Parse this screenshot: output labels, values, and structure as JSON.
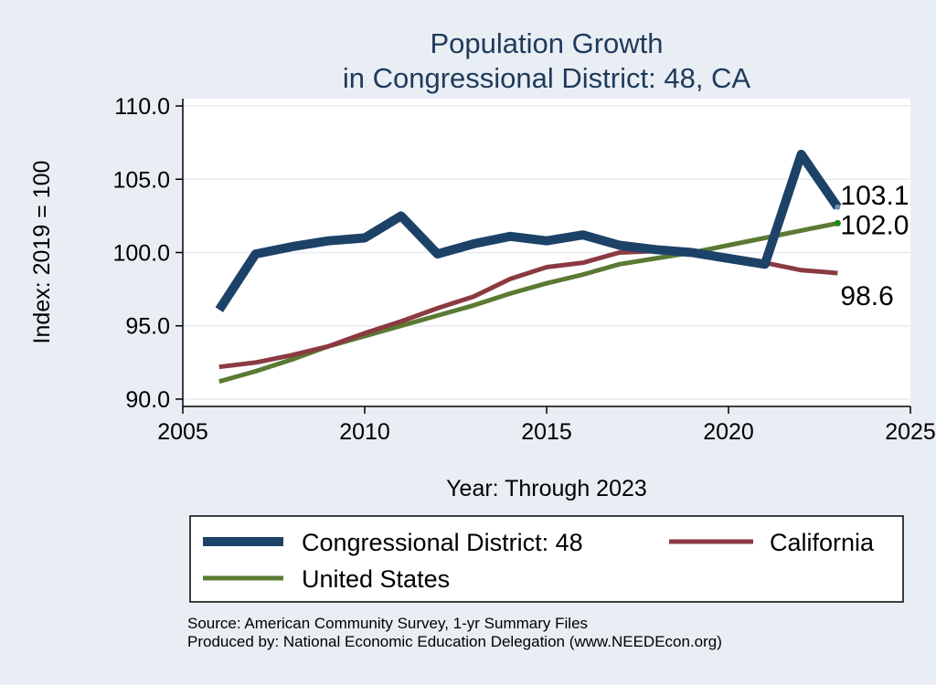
{
  "chart_data": {
    "type": "line",
    "title": [
      "Population Growth",
      "in Congressional District: 48, CA"
    ],
    "xlabel": "Year: Through 2023",
    "ylabel": "Index: 2019 = 100",
    "xlim": [
      2005,
      2025
    ],
    "ylim": [
      89.5,
      110.5
    ],
    "xticks": [
      2005,
      2010,
      2015,
      2020,
      2025
    ],
    "yticks": [
      90.0,
      95.0,
      100.0,
      105.0,
      110.0
    ],
    "ytick_labels": [
      "90.0",
      "95.0",
      "100.0",
      "105.0",
      "110.0"
    ],
    "grid": true,
    "x": [
      2006,
      2007,
      2008,
      2009,
      2010,
      2011,
      2012,
      2013,
      2014,
      2015,
      2016,
      2017,
      2018,
      2019,
      2020,
      2021,
      2022,
      2023
    ],
    "series": [
      {
        "name": "Congressional District: 48",
        "color": "#1d4268",
        "values": [
          96.1,
          99.9,
          100.4,
          100.8,
          101.0,
          102.5,
          99.9,
          100.6,
          101.1,
          100.8,
          101.2,
          100.5,
          100.2,
          100.0,
          99.6,
          99.2,
          106.7,
          103.1
        ],
        "end_label": "103.1"
      },
      {
        "name": "California",
        "color": "#8b3a42",
        "values": [
          92.2,
          92.5,
          93.0,
          93.6,
          94.5,
          95.3,
          96.2,
          97.0,
          98.2,
          99.0,
          99.3,
          100.0,
          100.1,
          100.0,
          99.7,
          99.3,
          98.8,
          98.6
        ],
        "end_label": "98.6"
      },
      {
        "name": "United States",
        "color": "#5a7a33",
        "values": [
          91.2,
          91.9,
          92.7,
          93.6,
          94.3,
          95.0,
          95.7,
          96.4,
          97.2,
          97.9,
          98.5,
          99.2,
          99.6,
          100.0,
          100.5,
          101.0,
          101.5,
          102.0
        ],
        "end_label": "102.0"
      }
    ],
    "legend": {
      "placement": "bottom",
      "entries": [
        "Congressional District: 48",
        "California",
        "United States"
      ]
    },
    "notes": [
      "Source: American Community Survey, 1-yr Summary Files",
      "Produced by: National Economic Education Delegation (www.NEEDEcon.org)"
    ]
  }
}
